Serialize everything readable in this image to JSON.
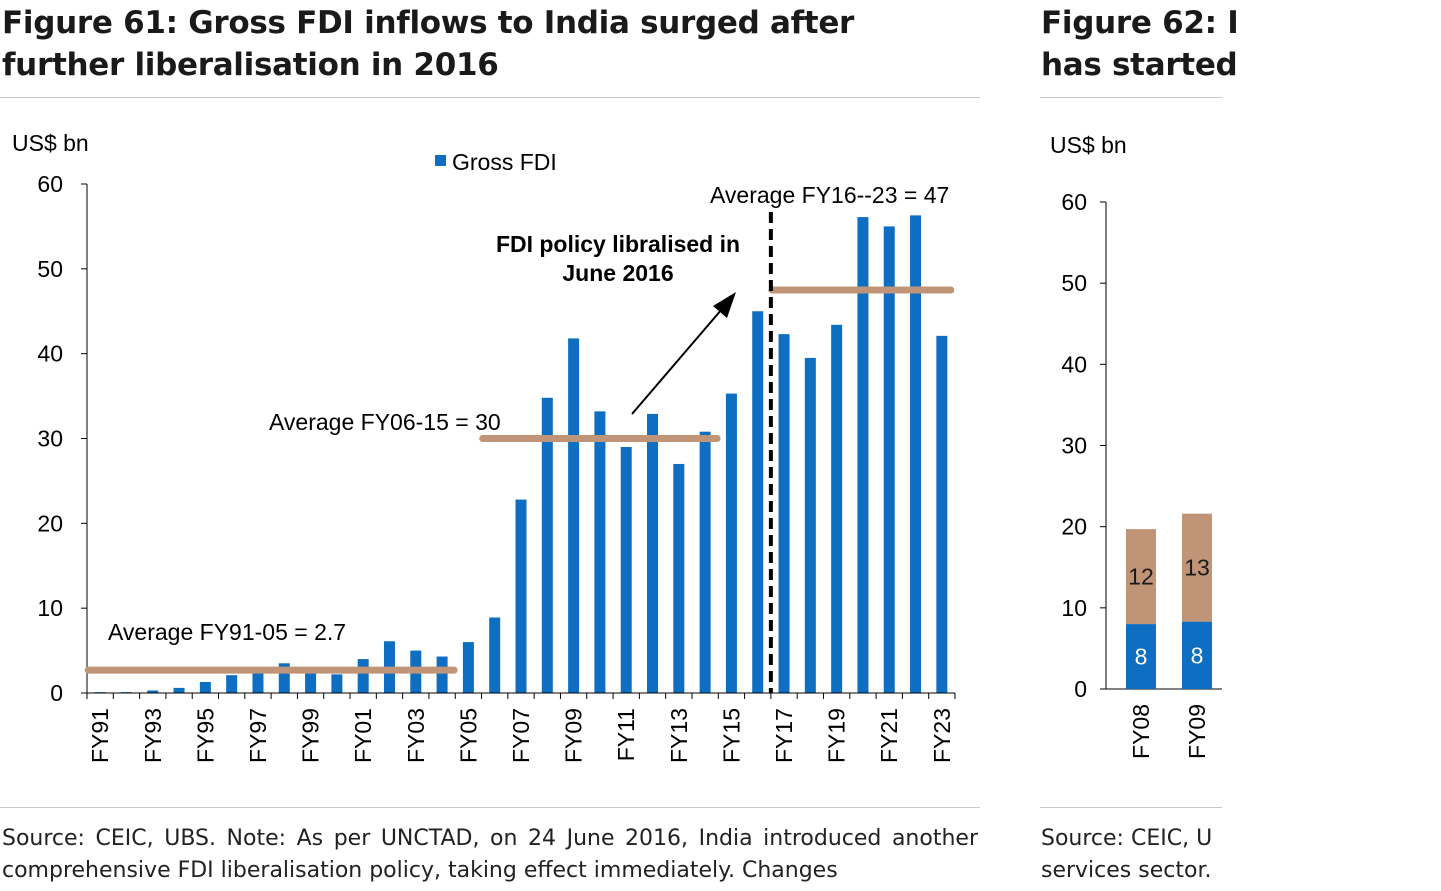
{
  "figure61": {
    "title": "Figure 61: Gross FDI inflows to India surged after further liberalisation in 2016",
    "source": "Source: CEIC, UBS. Note: As per UNCTAD, on 24 June 2016, India introduced another comprehensive FDI liberalisation policy, taking effect immediately. Changes"
  },
  "figure62": {
    "title_line1": "Figure 62: I",
    "title_line2": "has started",
    "source_line1": "Source: CEIC, U",
    "source_line2": "services sector."
  },
  "chart_data": [
    {
      "type": "bar",
      "unit_label": "US$ bn",
      "legend": "Gross FDI",
      "legend_position": "top",
      "ylim": [
        0,
        60
      ],
      "yticks": [
        0,
        10,
        20,
        30,
        40,
        50,
        60
      ],
      "grid": false,
      "categories": [
        "FY91",
        "FY92",
        "FY93",
        "FY94",
        "FY95",
        "FY96",
        "FY97",
        "FY98",
        "FY99",
        "FY00",
        "FY01",
        "FY02",
        "FY03",
        "FY04",
        "FY05",
        "FY06",
        "FY07",
        "FY08",
        "FY09",
        "FY10",
        "FY11",
        "FY12",
        "FY13",
        "FY14",
        "FY15",
        "FY16",
        "FY17",
        "FY18",
        "FY19",
        "FY20",
        "FY21",
        "FY22",
        "FY23"
      ],
      "tick_labels": [
        "FY91",
        "",
        "FY93",
        "",
        "FY95",
        "",
        "FY97",
        "",
        "FY99",
        "",
        "FY01",
        "",
        "FY03",
        "",
        "FY05",
        "",
        "FY07",
        "",
        "FY09",
        "",
        "FY11",
        "",
        "FY13",
        "",
        "FY15",
        "",
        "FY17",
        "",
        "FY19",
        "",
        "FY21",
        "",
        "FY23"
      ],
      "series": [
        {
          "name": "Gross FDI",
          "color": "#0e6ec1",
          "values": [
            0.1,
            0.1,
            0.3,
            0.6,
            1.3,
            2.1,
            2.8,
            3.5,
            2.6,
            2.2,
            4.0,
            6.1,
            5.0,
            4.3,
            6.0,
            8.9,
            22.8,
            34.8,
            41.8,
            33.2,
            29.0,
            32.9,
            27.0,
            30.8,
            35.3,
            45.0,
            42.3,
            39.5,
            43.4,
            56.1,
            55.0,
            56.3,
            42.1
          ]
        }
      ],
      "annotations": {
        "avg1": {
          "text": "Average FY91-05 = 2.7",
          "value": 2.7,
          "from": "FY91",
          "to": "FY04"
        },
        "avg2": {
          "text": "Average FY06-15 = 30",
          "value": 30,
          "from": "FY06",
          "to": "FY14"
        },
        "avg3": {
          "text": "Average FY16--23 = 47",
          "value": 47.5,
          "from": "FY17",
          "to": "FY23"
        },
        "policy_line1": "FDI policy libralised in",
        "policy_line2": "June 2016",
        "policy_marker_between": [
          "FY16",
          "FY17"
        ]
      },
      "colors": {
        "bar": "#0e6ec1",
        "average_line": "#bf9477",
        "axis": "#000000"
      }
    },
    {
      "type": "bar",
      "stacked": true,
      "unit_label": "US$ bn",
      "ylim": [
        0,
        60
      ],
      "yticks": [
        0,
        10,
        20,
        30,
        40,
        50,
        60
      ],
      "categories": [
        "FY08",
        "FY09"
      ],
      "series": [
        {
          "color": "#0e6ec1",
          "values": [
            8,
            8.3
          ],
          "labels": [
            "8",
            "8"
          ]
        },
        {
          "color": "#bf9477",
          "values": [
            11.7,
            13.3
          ],
          "labels": [
            "12",
            "13"
          ]
        }
      ]
    }
  ]
}
